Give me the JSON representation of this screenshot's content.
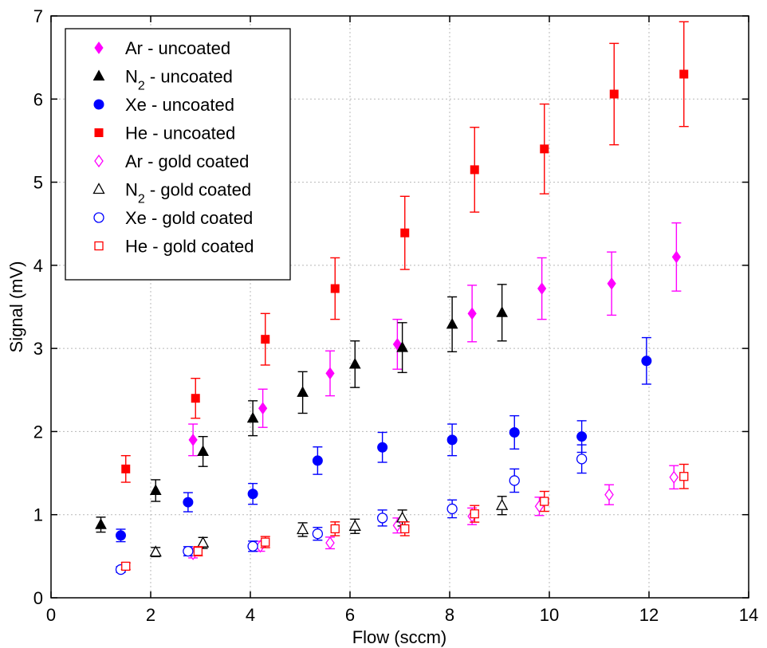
{
  "chart_data": {
    "type": "scatter",
    "xlabel": "Flow (sccm)",
    "ylabel": "Signal (mV)",
    "xlim": [
      0,
      14
    ],
    "ylim": [
      0,
      7
    ],
    "xticks": [
      0,
      2,
      4,
      6,
      8,
      10,
      12,
      14
    ],
    "yticks": [
      0,
      1,
      2,
      3,
      4,
      5,
      6,
      7
    ],
    "grid": true,
    "legend_position": "top-left",
    "series": [
      {
        "name": "Ar - uncoated",
        "color": "#ff00ff",
        "marker": "diamond",
        "filled": true,
        "points": [
          {
            "x": 2.85,
            "y": 1.9,
            "err": 0.19
          },
          {
            "x": 4.25,
            "y": 2.28,
            "err": 0.23
          },
          {
            "x": 5.6,
            "y": 2.7,
            "err": 0.27
          },
          {
            "x": 6.95,
            "y": 3.05,
            "err": 0.3
          },
          {
            "x": 8.45,
            "y": 3.42,
            "err": 0.34
          },
          {
            "x": 9.85,
            "y": 3.72,
            "err": 0.37
          },
          {
            "x": 11.25,
            "y": 3.78,
            "err": 0.38
          },
          {
            "x": 12.55,
            "y": 4.1,
            "err": 0.41
          }
        ]
      },
      {
        "name_main": "N",
        "name_sub": "2",
        "name_rest": " - uncoated",
        "color": "#000000",
        "marker": "triangle",
        "filled": true,
        "points": [
          {
            "x": 1.0,
            "y": 0.88,
            "err": 0.09
          },
          {
            "x": 2.1,
            "y": 1.29,
            "err": 0.13
          },
          {
            "x": 3.05,
            "y": 1.76,
            "err": 0.18
          },
          {
            "x": 4.05,
            "y": 2.16,
            "err": 0.21
          },
          {
            "x": 5.05,
            "y": 2.47,
            "err": 0.25
          },
          {
            "x": 6.1,
            "y": 2.81,
            "err": 0.28
          },
          {
            "x": 7.05,
            "y": 3.01,
            "err": 0.3
          },
          {
            "x": 8.05,
            "y": 3.29,
            "err": 0.33
          },
          {
            "x": 9.05,
            "y": 3.43,
            "err": 0.34
          }
        ]
      },
      {
        "name": "Xe - uncoated",
        "color": "#0000ff",
        "marker": "circle",
        "filled": true,
        "points": [
          {
            "x": 1.4,
            "y": 0.75,
            "err": 0.075
          },
          {
            "x": 2.75,
            "y": 1.15,
            "err": 0.115
          },
          {
            "x": 4.05,
            "y": 1.25,
            "err": 0.125
          },
          {
            "x": 5.35,
            "y": 1.65,
            "err": 0.165
          },
          {
            "x": 6.65,
            "y": 1.81,
            "err": 0.18
          },
          {
            "x": 8.05,
            "y": 1.9,
            "err": 0.19
          },
          {
            "x": 9.3,
            "y": 1.99,
            "err": 0.2
          },
          {
            "x": 10.65,
            "y": 1.94,
            "err": 0.19
          },
          {
            "x": 11.95,
            "y": 2.85,
            "err": 0.28
          }
        ]
      },
      {
        "name": "He - uncoated",
        "color": "#ff0000",
        "marker": "square",
        "filled": true,
        "points": [
          {
            "x": 1.5,
            "y": 1.55,
            "err": 0.16
          },
          {
            "x": 2.9,
            "y": 2.4,
            "err": 0.24
          },
          {
            "x": 4.3,
            "y": 3.11,
            "err": 0.31
          },
          {
            "x": 5.7,
            "y": 3.72,
            "err": 0.37
          },
          {
            "x": 7.1,
            "y": 4.39,
            "err": 0.44
          },
          {
            "x": 8.5,
            "y": 5.15,
            "err": 0.51
          },
          {
            "x": 9.9,
            "y": 5.4,
            "err": 0.54
          },
          {
            "x": 11.3,
            "y": 6.06,
            "err": 0.61
          },
          {
            "x": 12.7,
            "y": 6.3,
            "err": 0.63
          }
        ]
      },
      {
        "name": "Ar - gold coated",
        "color": "#ff00ff",
        "marker": "diamond",
        "filled": false,
        "points": [
          {
            "x": 2.85,
            "y": 0.53,
            "err": 0.05
          },
          {
            "x": 4.2,
            "y": 0.62,
            "err": 0.06
          },
          {
            "x": 5.6,
            "y": 0.66,
            "err": 0.07
          },
          {
            "x": 6.95,
            "y": 0.87,
            "err": 0.09
          },
          {
            "x": 8.45,
            "y": 0.98,
            "err": 0.1
          },
          {
            "x": 9.8,
            "y": 1.1,
            "err": 0.11
          },
          {
            "x": 11.2,
            "y": 1.24,
            "err": 0.12
          },
          {
            "x": 12.5,
            "y": 1.45,
            "err": 0.14
          }
        ]
      },
      {
        "name_main": "N",
        "name_sub": "2",
        "name_rest": " - gold coated",
        "color": "#000000",
        "marker": "triangle",
        "filled": false,
        "points": [
          {
            "x": 2.1,
            "y": 0.55,
            "err": 0.055
          },
          {
            "x": 3.05,
            "y": 0.66,
            "err": 0.066
          },
          {
            "x": 5.05,
            "y": 0.82,
            "err": 0.082
          },
          {
            "x": 6.1,
            "y": 0.86,
            "err": 0.086
          },
          {
            "x": 7.05,
            "y": 0.96,
            "err": 0.096
          },
          {
            "x": 9.05,
            "y": 1.11,
            "err": 0.11
          }
        ]
      },
      {
        "name": "Xe - gold coated",
        "color": "#0000ff",
        "marker": "circle",
        "filled": false,
        "points": [
          {
            "x": 1.4,
            "y": 0.34,
            "err": 0.035
          },
          {
            "x": 2.75,
            "y": 0.56,
            "err": 0.055
          },
          {
            "x": 4.05,
            "y": 0.62,
            "err": 0.062
          },
          {
            "x": 5.35,
            "y": 0.77,
            "err": 0.077
          },
          {
            "x": 6.65,
            "y": 0.96,
            "err": 0.096
          },
          {
            "x": 8.05,
            "y": 1.07,
            "err": 0.107
          },
          {
            "x": 9.3,
            "y": 1.41,
            "err": 0.14
          },
          {
            "x": 10.65,
            "y": 1.67,
            "err": 0.17
          }
        ]
      },
      {
        "name": "He - gold coated",
        "color": "#ff0000",
        "marker": "square",
        "filled": false,
        "points": [
          {
            "x": 1.5,
            "y": 0.38,
            "err": 0.04
          },
          {
            "x": 2.95,
            "y": 0.56,
            "err": 0.055
          },
          {
            "x": 4.3,
            "y": 0.67,
            "err": 0.067
          },
          {
            "x": 5.7,
            "y": 0.83,
            "err": 0.083
          },
          {
            "x": 7.1,
            "y": 0.83,
            "err": 0.083
          },
          {
            "x": 8.5,
            "y": 1.01,
            "err": 0.1
          },
          {
            "x": 9.9,
            "y": 1.16,
            "err": 0.12
          },
          {
            "x": 12.7,
            "y": 1.46,
            "err": 0.146
          }
        ]
      }
    ]
  }
}
